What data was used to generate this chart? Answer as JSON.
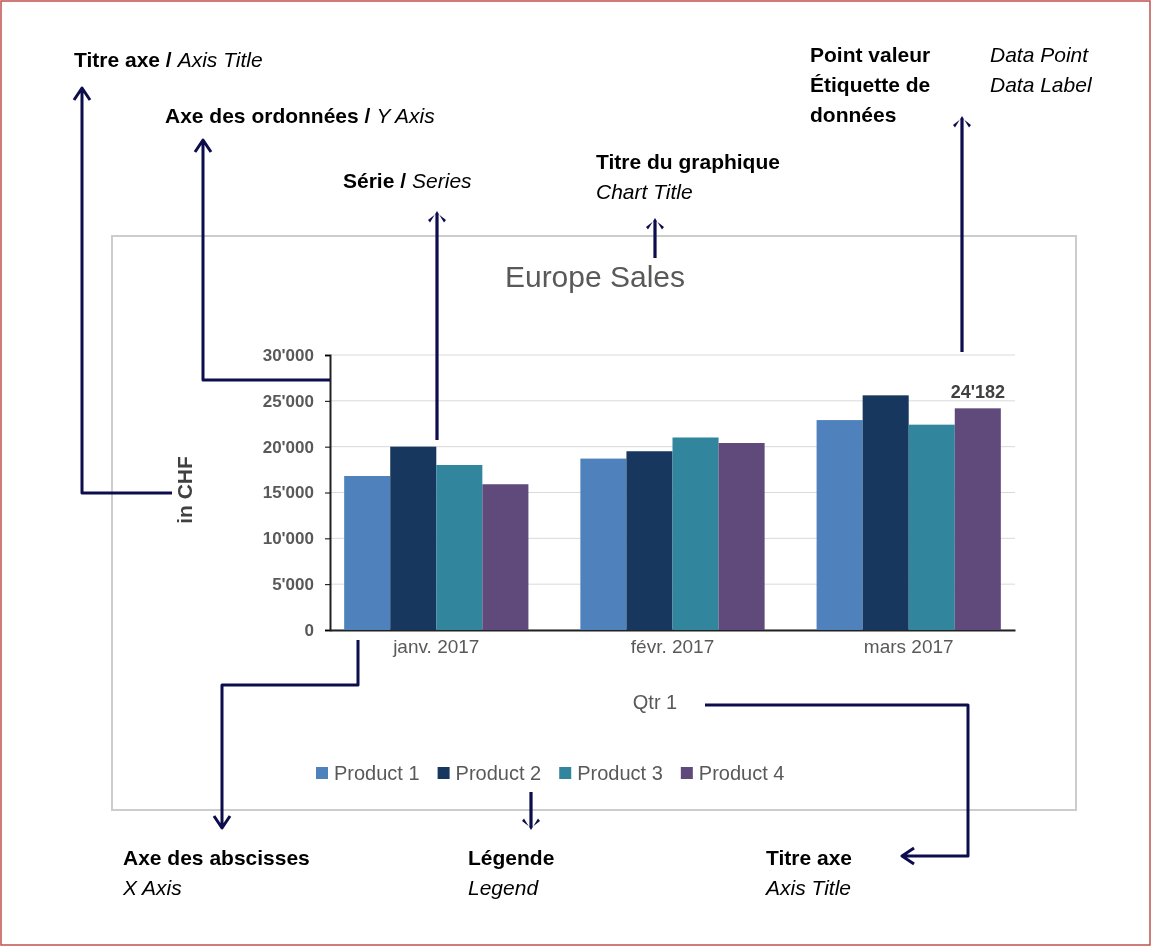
{
  "chart_data": {
    "type": "bar",
    "title": "Europe Sales",
    "xlabel": "Qtr 1",
    "ylabel": "in CHF",
    "categories": [
      "janv. 2017",
      "févr. 2017",
      "mars 2017"
    ],
    "series": [
      {
        "name": "Product 1",
        "color": "#4f81bd",
        "values": [
          16800,
          18700,
          22900
        ]
      },
      {
        "name": "Product 2",
        "color": "#17375e",
        "values": [
          20000,
          19500,
          25600
        ]
      },
      {
        "name": "Product 3",
        "color": "#31859c",
        "values": [
          18000,
          21000,
          22400
        ]
      },
      {
        "name": "Product 4",
        "color": "#604a7b",
        "values": [
          15900,
          20400,
          24182
        ],
        "value_labels": [
          null,
          null,
          "24'182"
        ]
      }
    ],
    "ylim": [
      0,
      30000
    ],
    "yticks": [
      {
        "value": 0,
        "label": "0"
      },
      {
        "value": 5000,
        "label": "5'000"
      },
      {
        "value": 10000,
        "label": "10'000"
      },
      {
        "value": 15000,
        "label": "15'000"
      },
      {
        "value": 20000,
        "label": "20'000"
      },
      {
        "value": 25000,
        "label": "25'000"
      },
      {
        "value": 30000,
        "label": "30'000"
      }
    ],
    "grid": "y",
    "legend": "bottom",
    "annotations": [
      "Titre axe /",
      "Axis Title",
      "Axe des ordonnées /",
      "Y Axis",
      "Série /",
      "Series",
      "Titre du graphique",
      "Chart Title",
      "Point valeur",
      "Data Point",
      "Étiquette de données",
      "Data Label",
      "Axe des abscisses",
      "X Axis",
      "Légende",
      "Legend",
      "Titre axe",
      "Axis Title"
    ]
  }
}
